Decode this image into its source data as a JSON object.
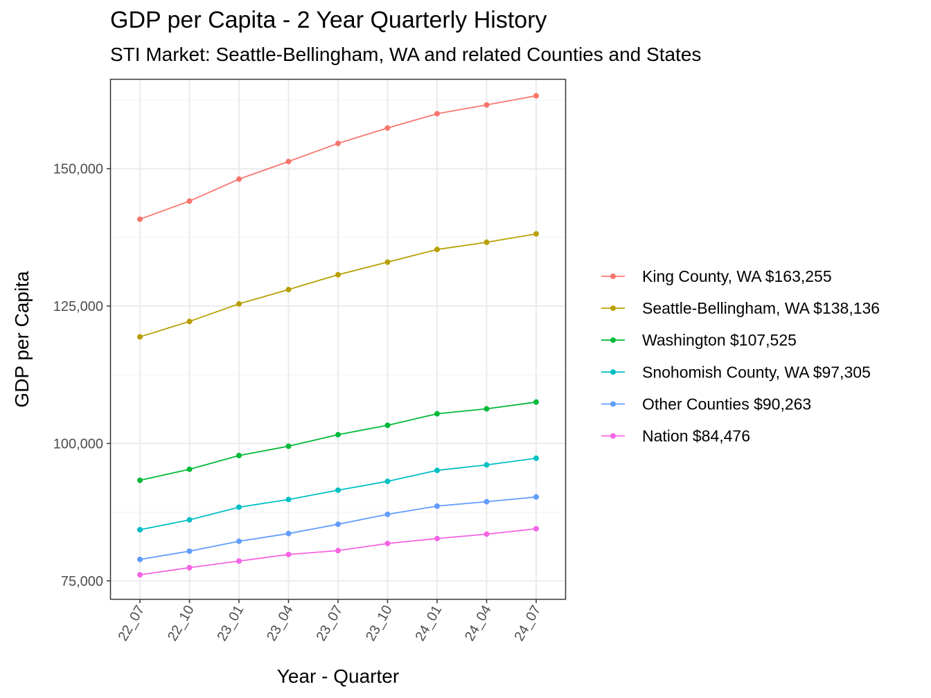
{
  "chart_data": {
    "type": "line",
    "title": "GDP per Capita - 2 Year Quarterly History",
    "subtitle": "STI Market: Seattle-Bellingham, WA and related Counties and States",
    "xlabel": "Year - Quarter",
    "ylabel": "GDP per Capita",
    "categories": [
      "22_07",
      "22_10",
      "23_01",
      "23_04",
      "23_07",
      "23_10",
      "24_01",
      "24_04",
      "24_07"
    ],
    "ylim": [
      71700,
      166200
    ],
    "yticks": [
      75000,
      100000,
      125000,
      150000
    ],
    "ytick_labels": [
      "75,000",
      "100,000",
      "125,000",
      "150,000"
    ],
    "grid": true,
    "legend_position": "right",
    "series": [
      {
        "name": "King County, WA $163,255",
        "color": "#F8766D",
        "values": [
          140800,
          144100,
          148100,
          151300,
          154600,
          157400,
          160000,
          161600,
          163255
        ]
      },
      {
        "name": "Seattle-Bellingham, WA $138,136",
        "color": "#B79F00",
        "values": [
          119400,
          122200,
          125400,
          128000,
          130700,
          133000,
          135300,
          136600,
          138136
        ]
      },
      {
        "name": "Washington $107,525",
        "color": "#00BA38",
        "values": [
          93300,
          95300,
          97800,
          99500,
          101600,
          103300,
          105400,
          106300,
          107525
        ]
      },
      {
        "name": "Snohomish County, WA $97,305",
        "color": "#00BFC4",
        "values": [
          84300,
          86100,
          88400,
          89800,
          91500,
          93100,
          95100,
          96100,
          97305
        ]
      },
      {
        "name": "Other Counties $90,263",
        "color": "#619CFF",
        "values": [
          78900,
          80400,
          82200,
          83600,
          85300,
          87100,
          88600,
          89400,
          90263
        ]
      },
      {
        "name": "Nation $84,476",
        "color": "#F564E3",
        "values": [
          76100,
          77400,
          78600,
          79800,
          80500,
          81800,
          82700,
          83500,
          84476
        ]
      }
    ]
  }
}
